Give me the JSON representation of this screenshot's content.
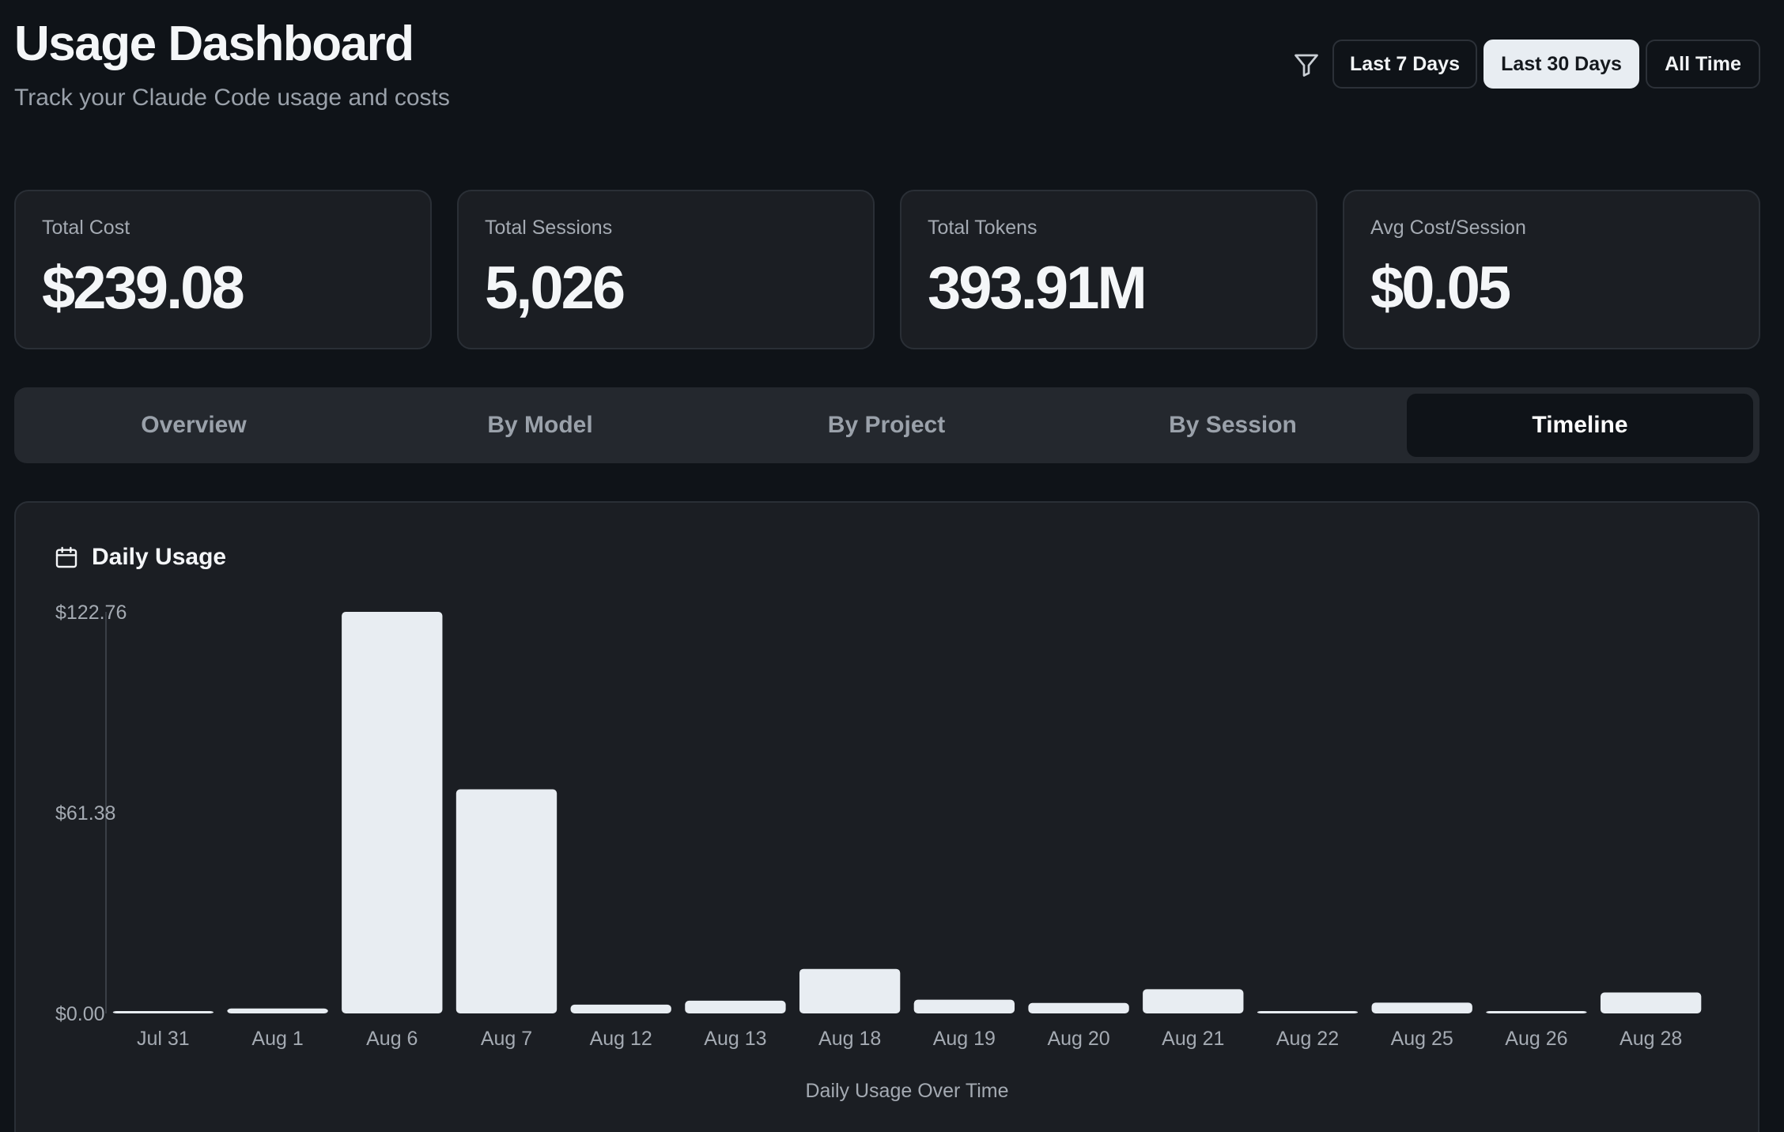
{
  "header": {
    "title": "Usage Dashboard",
    "subtitle": "Track your Claude Code usage and costs",
    "filter_icon": "filter-icon",
    "ranges": [
      {
        "label": "Last 7 Days",
        "active": false
      },
      {
        "label": "Last 30 Days",
        "active": true
      },
      {
        "label": "All Time",
        "active": false
      }
    ]
  },
  "stats": [
    {
      "label": "Total Cost",
      "value": "$239.08"
    },
    {
      "label": "Total Sessions",
      "value": "5,026"
    },
    {
      "label": "Total Tokens",
      "value": "393.91M"
    },
    {
      "label": "Avg Cost/Session",
      "value": "$0.05"
    }
  ],
  "tabs": [
    {
      "label": "Overview",
      "active": false
    },
    {
      "label": "By Model",
      "active": false
    },
    {
      "label": "By Project",
      "active": false
    },
    {
      "label": "By Session",
      "active": false
    },
    {
      "label": "Timeline",
      "active": true
    }
  ],
  "chart_card": {
    "icon": "calendar-icon",
    "title": "Daily Usage"
  },
  "colors": {
    "background": "#0f1318",
    "card": "#1b1e23",
    "bar": "#e8edf2",
    "muted_text": "#a4aab2"
  },
  "chart_data": {
    "type": "bar",
    "categories": [
      "Jul 31",
      "Aug 1",
      "Aug 6",
      "Aug 7",
      "Aug 12",
      "Aug 13",
      "Aug 18",
      "Aug 19",
      "Aug 20",
      "Aug 21",
      "Aug 22",
      "Aug 25",
      "Aug 26",
      "Aug 28"
    ],
    "values": [
      0.5,
      1.5,
      122.76,
      68.5,
      2.7,
      3.9,
      13.6,
      4.2,
      3.2,
      7.4,
      0.7,
      3.3,
      0.7,
      6.4
    ],
    "ylim": [
      0,
      122.76
    ],
    "yticks": [
      "$122.76",
      "$61.38",
      "$0.00"
    ],
    "ytick_values": [
      122.76,
      61.38,
      0
    ],
    "xlabel": "Daily Usage Over Time",
    "ylabel": "",
    "grid": false,
    "legend": "none"
  }
}
